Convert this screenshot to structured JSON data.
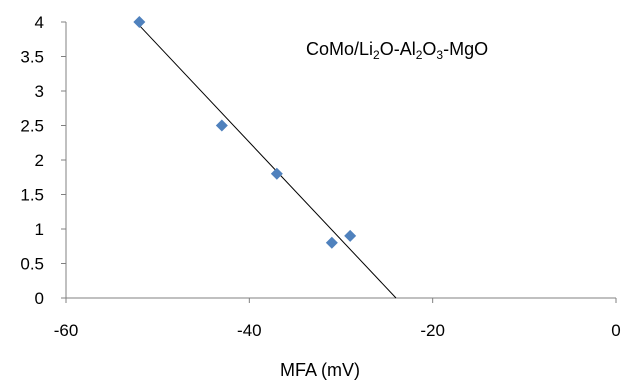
{
  "chart_data": {
    "type": "scatter",
    "title": "",
    "xlabel": "MFA (mV)",
    "ylabel": "",
    "xlim": [
      -60,
      0
    ],
    "ylim": [
      0,
      4
    ],
    "x_ticks": [
      -60,
      -40,
      -20,
      0
    ],
    "y_ticks": [
      0,
      0.5,
      1,
      1.5,
      2,
      2.5,
      3,
      3.5,
      4
    ],
    "x_tick_labels": [
      "-60",
      "-40",
      "-20",
      "0"
    ],
    "y_tick_labels": [
      "0",
      "0.5",
      "1",
      "1.5",
      "2",
      "2.5",
      "3",
      "3.5",
      "4"
    ],
    "grid": false,
    "series": [
      {
        "points": [
          {
            "x": -52,
            "y": 4.0
          },
          {
            "x": -43,
            "y": 2.5
          },
          {
            "x": -37,
            "y": 1.8
          },
          {
            "x": -31,
            "y": 0.8
          },
          {
            "x": -29,
            "y": 0.9
          }
        ],
        "marker": "diamond",
        "color": "#4f81bd"
      }
    ],
    "trendline": {
      "type": "linear",
      "from": {
        "x": -52,
        "y": 3.95
      },
      "to": {
        "x": -24,
        "y": 0
      },
      "color": "#000000"
    },
    "annotation": {
      "parts": [
        {
          "text": "CoMo/Li",
          "sub": false
        },
        {
          "text": "2",
          "sub": true
        },
        {
          "text": "O-Al",
          "sub": false
        },
        {
          "text": "2",
          "sub": true
        },
        {
          "text": "O",
          "sub": false
        },
        {
          "text": "3",
          "sub": true
        },
        {
          "text": "-MgO",
          "sub": false
        }
      ]
    }
  }
}
